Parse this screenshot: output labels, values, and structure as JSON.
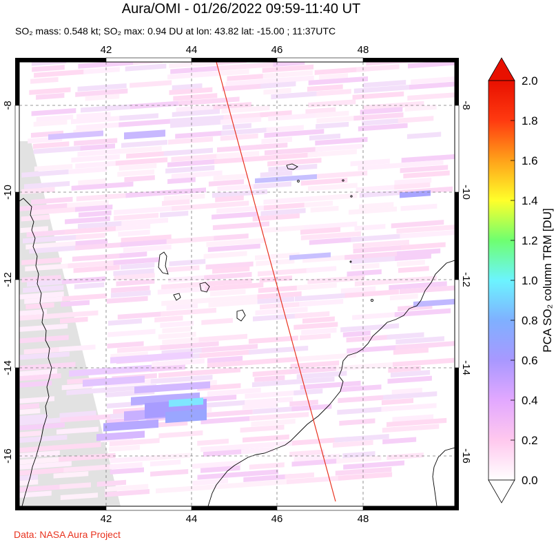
{
  "header": {
    "title": "Aura/OMI - 01/26/2022 09:59-11:40 UT",
    "subtitle": "SO₂ mass: 0.548 kt; SO₂ max: 0.94 DU at lon: 43.82 lat: -15.00 ; 11:37UTC"
  },
  "map": {
    "lon_ticks": [
      "42",
      "44",
      "46",
      "48"
    ],
    "lat_ticks": [
      "-8",
      "-10",
      "-12",
      "-14",
      "-16"
    ],
    "lon_range": [
      40.0,
      50.0
    ],
    "lat_range": [
      -17.0,
      -7.0
    ],
    "orbit_track_color": "#e8321e",
    "no_data_color": "#e2e2e2"
  },
  "colorbar": {
    "title": "PCA SO₂ column TRM [DU]",
    "labels": [
      "2.0",
      "1.8",
      "1.6",
      "1.4",
      "1.2",
      "1.0",
      "0.8",
      "0.6",
      "0.4",
      "0.2",
      "0.0"
    ],
    "range": [
      0.0,
      2.0
    ],
    "colors": [
      "#ffffff",
      "#ffc8ee",
      "#e2a8ff",
      "#a898ff",
      "#7fb0ff",
      "#6cf4ff",
      "#6eff70",
      "#ffff2a",
      "#ffa21a",
      "#ff3a10",
      "#e81000"
    ]
  },
  "footer": {
    "credit": "Data: NASA Aura Project"
  }
}
